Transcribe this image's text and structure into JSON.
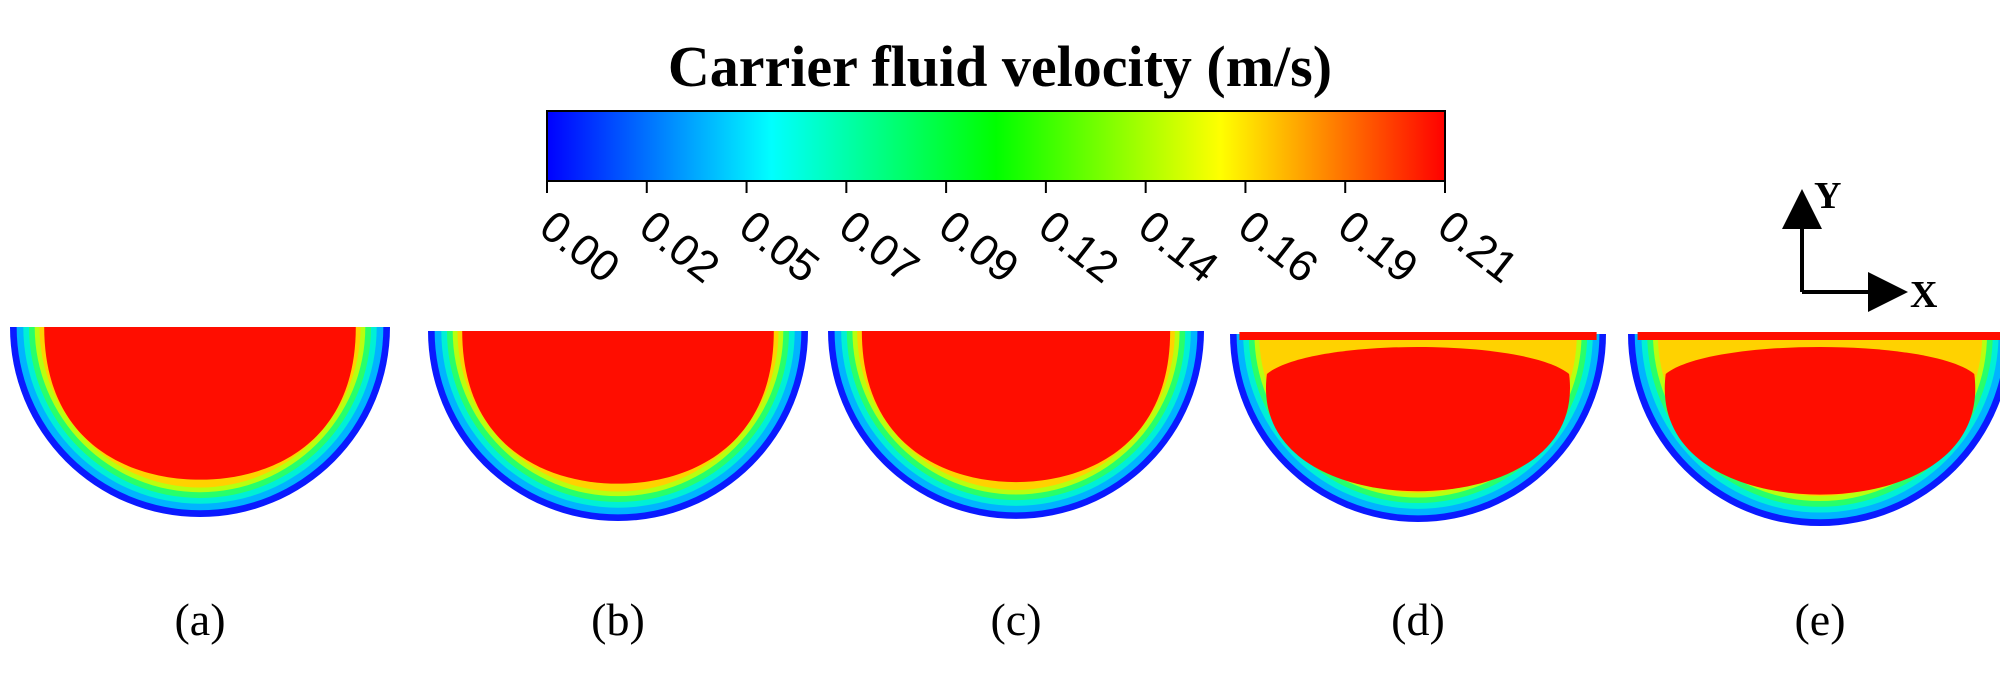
{
  "figure": {
    "title": "Carrier fluid velocity (m/s)"
  },
  "colorbar": {
    "ticks": [
      "0.00",
      "0.02",
      "0.05",
      "0.07",
      "0.09",
      "0.12",
      "0.14",
      "0.16",
      "0.19",
      "0.21"
    ],
    "min": 0.0,
    "max": 0.21,
    "colormap": [
      "#0000ff",
      "#00ffff",
      "#00ff00",
      "#ffff00",
      "#ff0000"
    ]
  },
  "panels": [
    {
      "id": "a",
      "label": "(a)",
      "core_color": "#ff0d00"
    },
    {
      "id": "b",
      "label": "(b)",
      "core_color": "#ff0d00"
    },
    {
      "id": "c",
      "label": "(c)",
      "core_color": "#ff0d00"
    },
    {
      "id": "d",
      "label": "(d)",
      "core_color": "#ff0d00"
    },
    {
      "id": "e",
      "label": "(e)",
      "core_color": "#ff0d00"
    }
  ],
  "axes": {
    "x_label": "X",
    "y_label": "Y"
  }
}
